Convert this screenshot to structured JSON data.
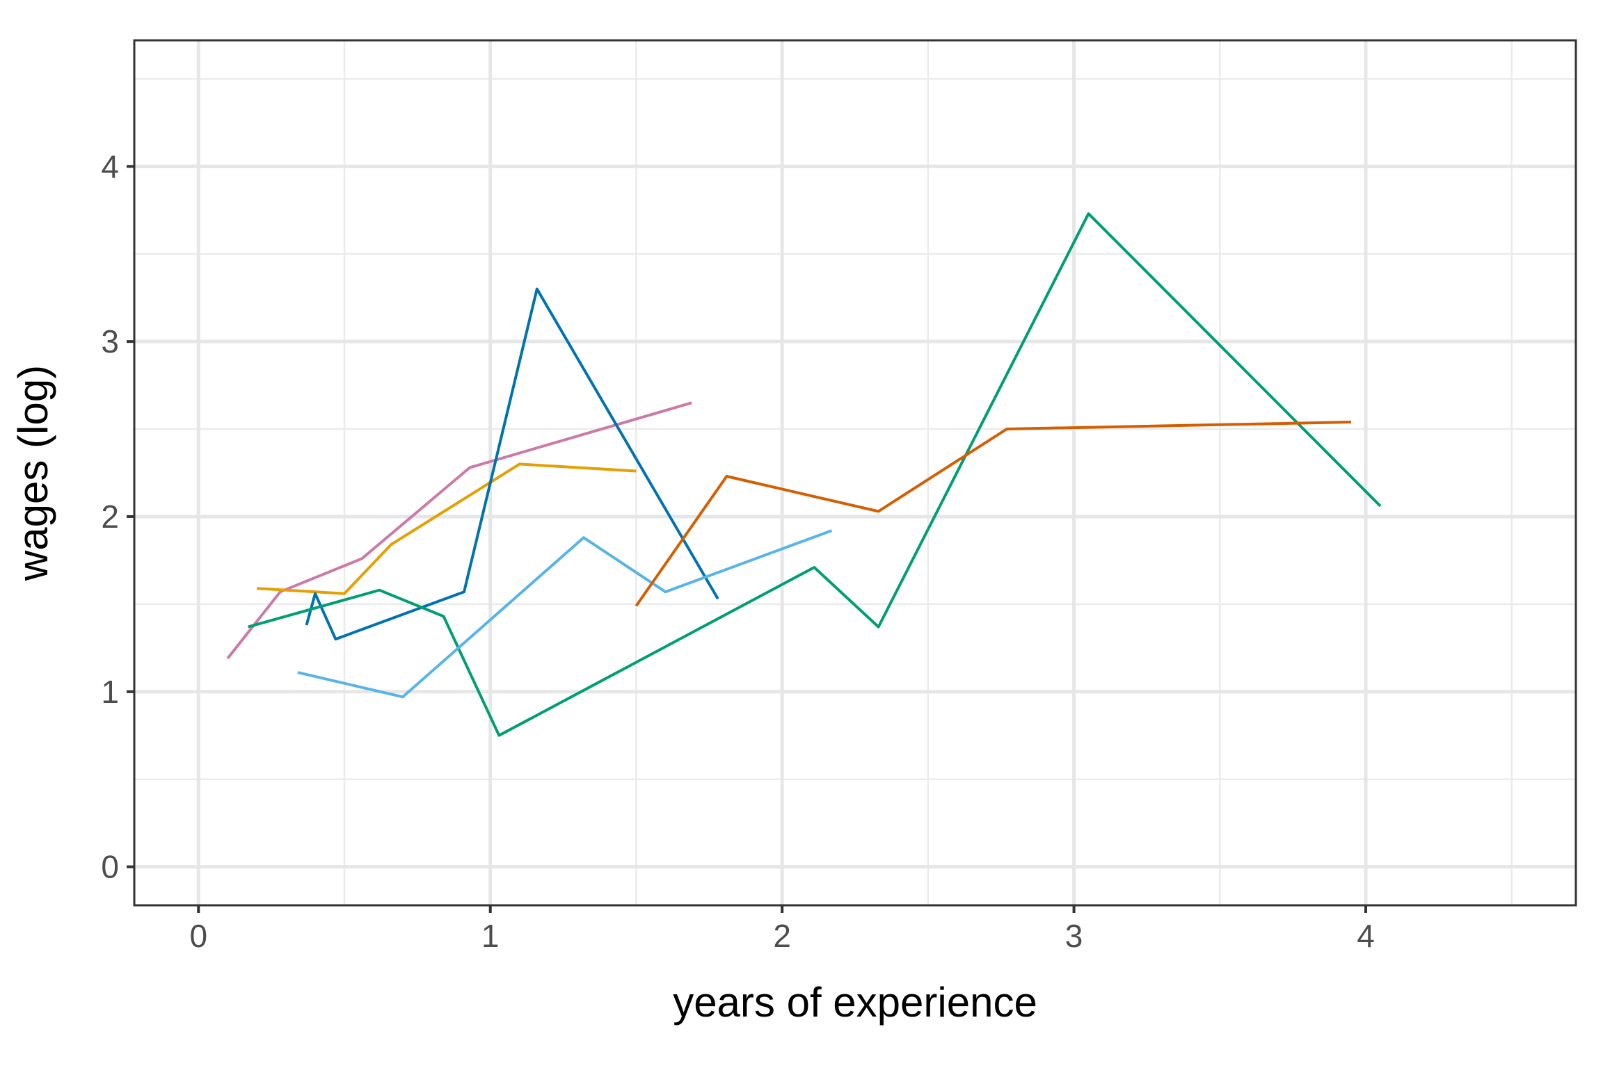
{
  "chart_data": {
    "type": "line",
    "title": "",
    "xlabel": "years of experience",
    "ylabel": "wages (log)",
    "xlim": [
      -0.22,
      4.72
    ],
    "ylim": [
      -0.22,
      4.72
    ],
    "x_ticks": [
      0,
      1,
      2,
      3,
      4
    ],
    "x_tick_labels": [
      "0",
      "1",
      "2",
      "3",
      "4"
    ],
    "y_ticks": [
      0,
      1,
      2,
      3,
      4
    ],
    "y_tick_labels": [
      "0",
      "1",
      "2",
      "3",
      "4"
    ],
    "x_minor": [
      0.5,
      1.5,
      2.5,
      3.5,
      4.5
    ],
    "y_minor": [
      0.5,
      1.5,
      2.5,
      3.5,
      4.5
    ],
    "grid": true,
    "legend": "none",
    "series": [
      {
        "color": "#CC79A7",
        "x": [
          0.1,
          0.28,
          0.56,
          0.93,
          1.69
        ],
        "y": [
          1.19,
          1.57,
          1.76,
          2.28,
          2.65
        ]
      },
      {
        "color": "#E69F00",
        "x": [
          0.2,
          0.5,
          0.66,
          1.1,
          1.5
        ],
        "y": [
          1.59,
          1.56,
          1.84,
          2.3,
          2.26
        ]
      },
      {
        "color": "#0072B2",
        "x": [
          0.37,
          0.4,
          0.47,
          0.91,
          1.16,
          1.78
        ],
        "y": [
          1.38,
          1.56,
          1.3,
          1.57,
          3.3,
          1.53
        ]
      },
      {
        "color": "#009E73",
        "x": [
          0.17,
          0.62,
          0.84,
          1.03,
          2.11,
          2.33,
          3.05,
          4.05
        ],
        "y": [
          1.37,
          1.58,
          1.43,
          0.75,
          1.71,
          1.37,
          3.73,
          2.06
        ]
      },
      {
        "color": "#56B4E9",
        "x": [
          0.34,
          0.7,
          1.32,
          1.6,
          2.17
        ],
        "y": [
          1.11,
          0.97,
          1.88,
          1.57,
          1.92
        ]
      },
      {
        "color": "#D55E00",
        "x": [
          1.5,
          1.81,
          2.33,
          2.77,
          3.95
        ],
        "y": [
          1.49,
          2.23,
          2.03,
          2.5,
          2.54
        ]
      }
    ]
  }
}
